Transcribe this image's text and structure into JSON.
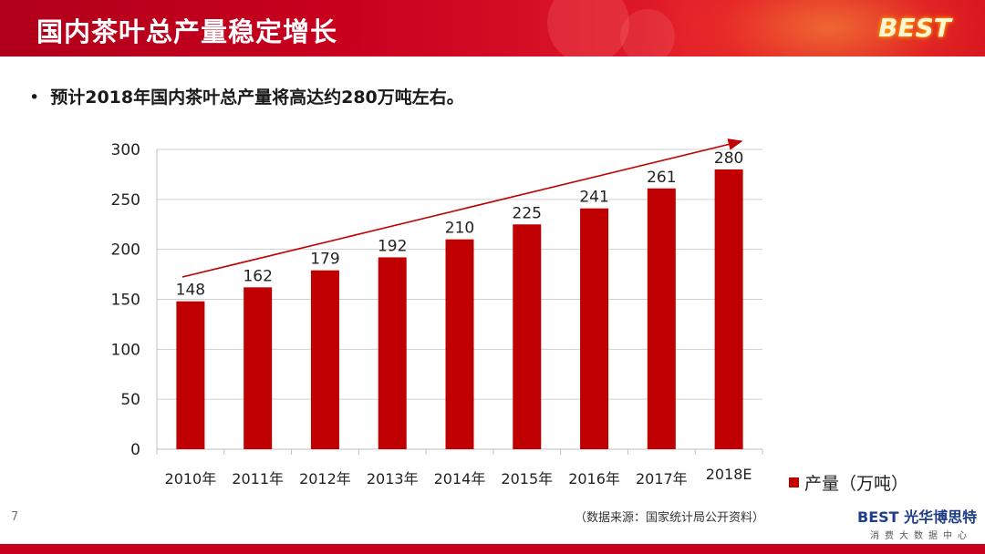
{
  "slide": {
    "title": "国内茶叶总产量稳定增长",
    "logo_text": "BEST",
    "bullet": "预计2018年国内茶叶总产量将高达约280万吨左右。",
    "bullet_marker": "•",
    "source": "（数据来源：国家统计局公开资料）",
    "page_number": "7",
    "brand_name": "光华博思特",
    "brand_prefix": "BEST",
    "brand_tagline": "消费大数据中心"
  },
  "colors": {
    "header_red": "#c8001e",
    "bar_red": "#c00000",
    "trend_arrow": "#c00000"
  },
  "chart_data": {
    "type": "bar",
    "categories": [
      "2010年",
      "2011年",
      "2012年",
      "2013年",
      "2014年",
      "2015年",
      "2016年",
      "2017年",
      "2018E"
    ],
    "series": [
      {
        "name": "产量（万吨）",
        "values": [
          148,
          162,
          179,
          192,
          210,
          225,
          241,
          261,
          280
        ]
      }
    ],
    "ylim": [
      0,
      300
    ],
    "yticks": [
      0,
      50,
      100,
      150,
      200,
      250,
      300
    ],
    "grid": true,
    "legend_position": "bottom-right",
    "annotations": [
      "trend arrow rising from 2010 to 2018E"
    ],
    "data_labels": true
  }
}
